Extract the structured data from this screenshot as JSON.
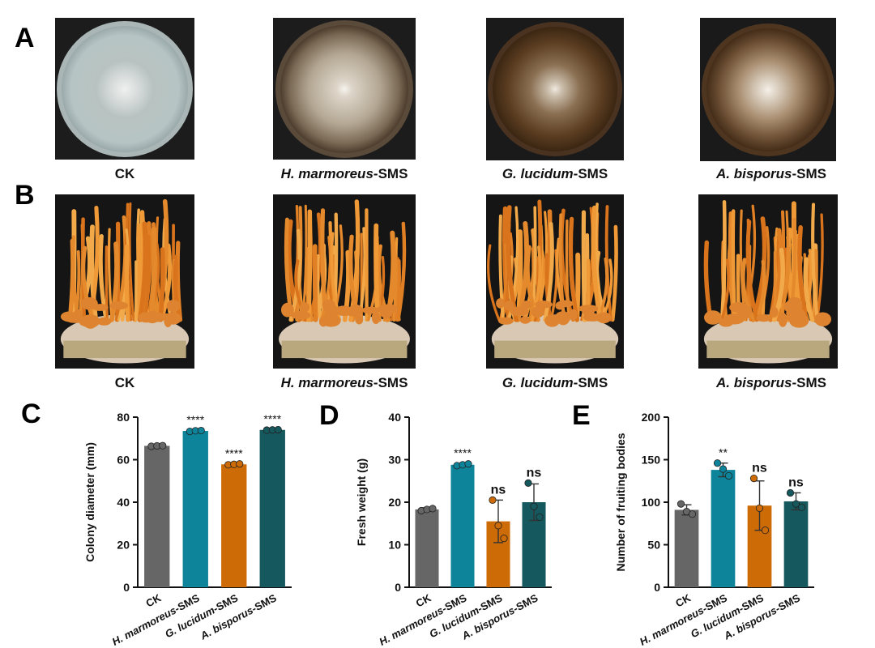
{
  "panels": {
    "A": "A",
    "B": "B",
    "C": "C",
    "D": "D",
    "E": "E"
  },
  "groups": [
    {
      "italic": "",
      "suffix": "CK"
    },
    {
      "italic": "H. marmoreus",
      "suffix": "-SMS"
    },
    {
      "italic": "G. lucidum",
      "suffix": "-SMS"
    },
    {
      "italic": "A. bisporus",
      "suffix": "-SMS"
    }
  ],
  "colors": {
    "ck": "#666666",
    "h_marmoreus": "#0e849a",
    "g_lucidum": "#cd6b06",
    "a_bisporus": "#15585d"
  },
  "chart_data": [
    {
      "panel": "C",
      "type": "bar",
      "ylabel": "Colony diameter (mm)",
      "categories": [
        "CK",
        "H. marmoreus-SMS",
        "G. lucidum-SMS",
        "A. bisporus-SMS"
      ],
      "values": [
        66.5,
        73.5,
        57.8,
        74.0
      ],
      "errors": [
        0.3,
        0.4,
        0.3,
        0.3
      ],
      "points": [
        [
          66.3,
          66.5,
          66.6
        ],
        [
          73.3,
          73.6,
          73.7
        ],
        [
          57.6,
          57.8,
          58.0
        ],
        [
          73.9,
          74.0,
          74.1
        ]
      ],
      "significance": [
        "",
        "****",
        "****",
        "****"
      ],
      "ylim": [
        0,
        80
      ],
      "yticks": [
        0,
        20,
        40,
        60,
        80
      ]
    },
    {
      "panel": "D",
      "type": "bar",
      "ylabel": "Fresh weight (g)",
      "categories": [
        "CK",
        "H. marmoreus-SMS",
        "G. lucidum-SMS",
        "A. bisporus-SMS"
      ],
      "values": [
        18.3,
        28.8,
        15.5,
        20.0
      ],
      "errors": [
        0.4,
        0.3,
        5.0,
        4.3
      ],
      "points": [
        [
          18.0,
          18.3,
          18.5
        ],
        [
          28.6,
          28.8,
          29.0
        ],
        [
          20.5,
          14.5,
          11.5
        ],
        [
          24.5,
          19.0,
          16.5
        ]
      ],
      "significance": [
        "",
        "****",
        "ns",
        "ns"
      ],
      "ylim": [
        0,
        40
      ],
      "yticks": [
        0,
        10,
        20,
        30,
        40
      ]
    },
    {
      "panel": "E",
      "type": "bar",
      "ylabel": "Number of fruiting bodies",
      "categories": [
        "CK",
        "H. marmoreus-SMS",
        "G. lucidum-SMS",
        "A. bisporus-SMS"
      ],
      "values": [
        91,
        138,
        96,
        101
      ],
      "errors": [
        6,
        8,
        29,
        10
      ],
      "points": [
        [
          98,
          89,
          86
        ],
        [
          146,
          139,
          131
        ],
        [
          128,
          93,
          67
        ],
        [
          111,
          98,
          94
        ]
      ],
      "significance": [
        "",
        "**",
        "ns",
        "ns"
      ],
      "ylim": [
        0,
        200
      ],
      "yticks": [
        0,
        50,
        100,
        150,
        200
      ]
    }
  ]
}
